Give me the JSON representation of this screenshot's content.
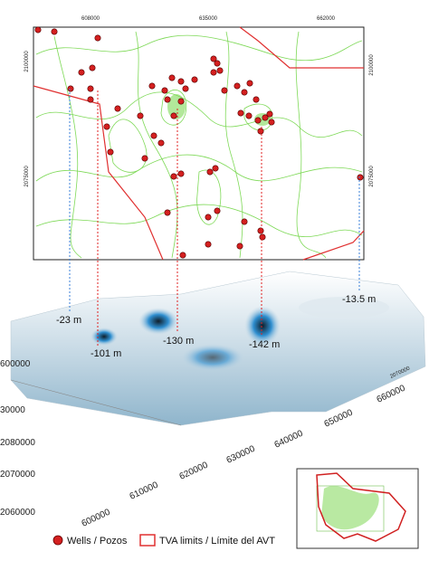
{
  "map": {
    "x_ticks": [
      "608000",
      "635000",
      "662000"
    ],
    "y_ticks_left": [
      "2100000",
      "2075000"
    ],
    "y_ticks_right": [
      "2100000",
      "2075000"
    ]
  },
  "depth_labels": [
    "-23 m",
    "-101 m",
    "-130 m",
    "-142 m",
    "-13.5 m"
  ],
  "surface": {
    "x_axis_labels": [
      "600000",
      "610000",
      "620000",
      "630000",
      "640000",
      "650000",
      "660000"
    ],
    "y_axis_labels": [
      "600000",
      "30000",
      "2080000",
      "2070000",
      "2060000"
    ],
    "right_labels": [
      "2070000"
    ]
  },
  "legend": {
    "items": [
      "Wells / Pozos",
      "TVA limits / Límite del AVT"
    ]
  }
}
